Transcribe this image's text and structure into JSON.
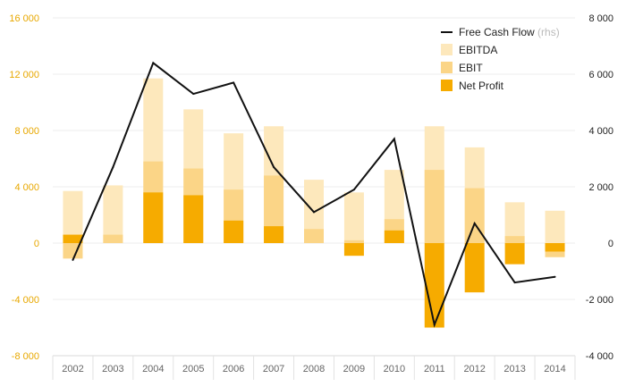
{
  "chart_data": {
    "type": "bar",
    "title": "",
    "xlabel": "",
    "ylabel": "",
    "categories": [
      "2002",
      "2003",
      "2004",
      "2005",
      "2006",
      "2007",
      "2008",
      "2009",
      "2010",
      "2011",
      "2012",
      "2013",
      "2014"
    ],
    "ylim": [
      -8000,
      16000
    ],
    "ylim_right": [
      -4000,
      8000
    ],
    "left_ticks": [
      "-8 000",
      "-4 000",
      "0",
      "4 000",
      "8 000",
      "12 000",
      "16 000"
    ],
    "left_tick_values": [
      -8000,
      -4000,
      0,
      4000,
      8000,
      12000,
      16000
    ],
    "right_ticks": [
      "-4 000",
      "-2 000",
      "0",
      "2 000",
      "4 000",
      "6 000",
      "8 000"
    ],
    "right_tick_values": [
      -4000,
      -2000,
      0,
      2000,
      4000,
      6000,
      8000
    ],
    "grid": true,
    "legend_position": "top-right",
    "series": [
      {
        "name": "EBITDA",
        "kind": "bar",
        "axis": "left",
        "color": "#fde8bc",
        "values": [
          3700,
          4100,
          11700,
          9500,
          7800,
          8300,
          4500,
          3600,
          5200,
          8300,
          6800,
          2900,
          2300
        ]
      },
      {
        "name": "EBIT",
        "kind": "bar",
        "axis": "left",
        "color": "#fbd587",
        "values": [
          -1100,
          600,
          5800,
          5300,
          3800,
          4800,
          1000,
          200,
          1700,
          5200,
          3900,
          500,
          -1000
        ]
      },
      {
        "name": "Net Profit",
        "kind": "bar",
        "axis": "left",
        "color": "#f6ab00",
        "values": [
          600,
          0,
          3600,
          3400,
          1600,
          1200,
          0,
          -900,
          900,
          -6000,
          -3500,
          -1500,
          -600
        ]
      },
      {
        "name": "Free Cash Flow",
        "note": "(rhs)",
        "kind": "line",
        "axis": "right",
        "color": "#111111",
        "values": [
          -600,
          2700,
          6400,
          5300,
          5700,
          2700,
          1100,
          1900,
          3700,
          -2900,
          700,
          -1400,
          -1200
        ]
      }
    ]
  },
  "legend": {
    "free_cash_flow": "Free Cash Flow",
    "free_cash_flow_note": "(rhs)",
    "ebitda": "EBITDA",
    "ebit": "EBIT",
    "net_profit": "Net Profit"
  }
}
